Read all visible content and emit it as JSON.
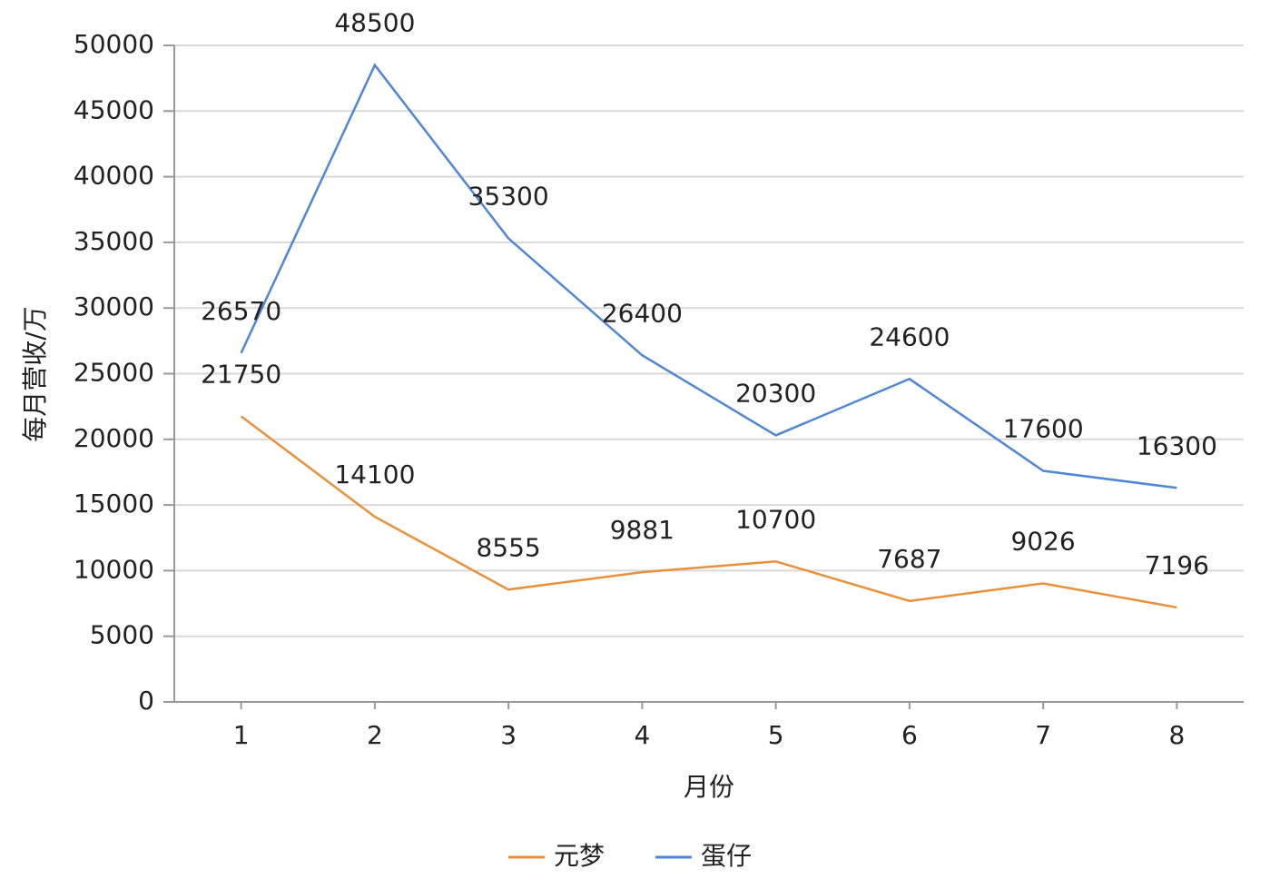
{
  "chart_data": {
    "type": "line",
    "x_label": "月份",
    "y_label": "每月营收/万",
    "categories": [
      "1",
      "2",
      "3",
      "4",
      "5",
      "6",
      "7",
      "8"
    ],
    "series": [
      {
        "name": "元梦",
        "color": "#e8913a",
        "values": [
          21750,
          14100,
          8555,
          9881,
          10700,
          7687,
          9026,
          7196
        ]
      },
      {
        "name": "蛋仔",
        "color": "#4f86d6",
        "values": [
          26570,
          48500,
          35300,
          26400,
          20300,
          24600,
          17600,
          16300
        ]
      }
    ],
    "ylim": [
      0,
      50000
    ],
    "yticks": [
      0,
      5000,
      10000,
      15000,
      20000,
      25000,
      30000,
      35000,
      40000,
      45000,
      50000
    ],
    "grid": true,
    "legend": "bottom"
  }
}
